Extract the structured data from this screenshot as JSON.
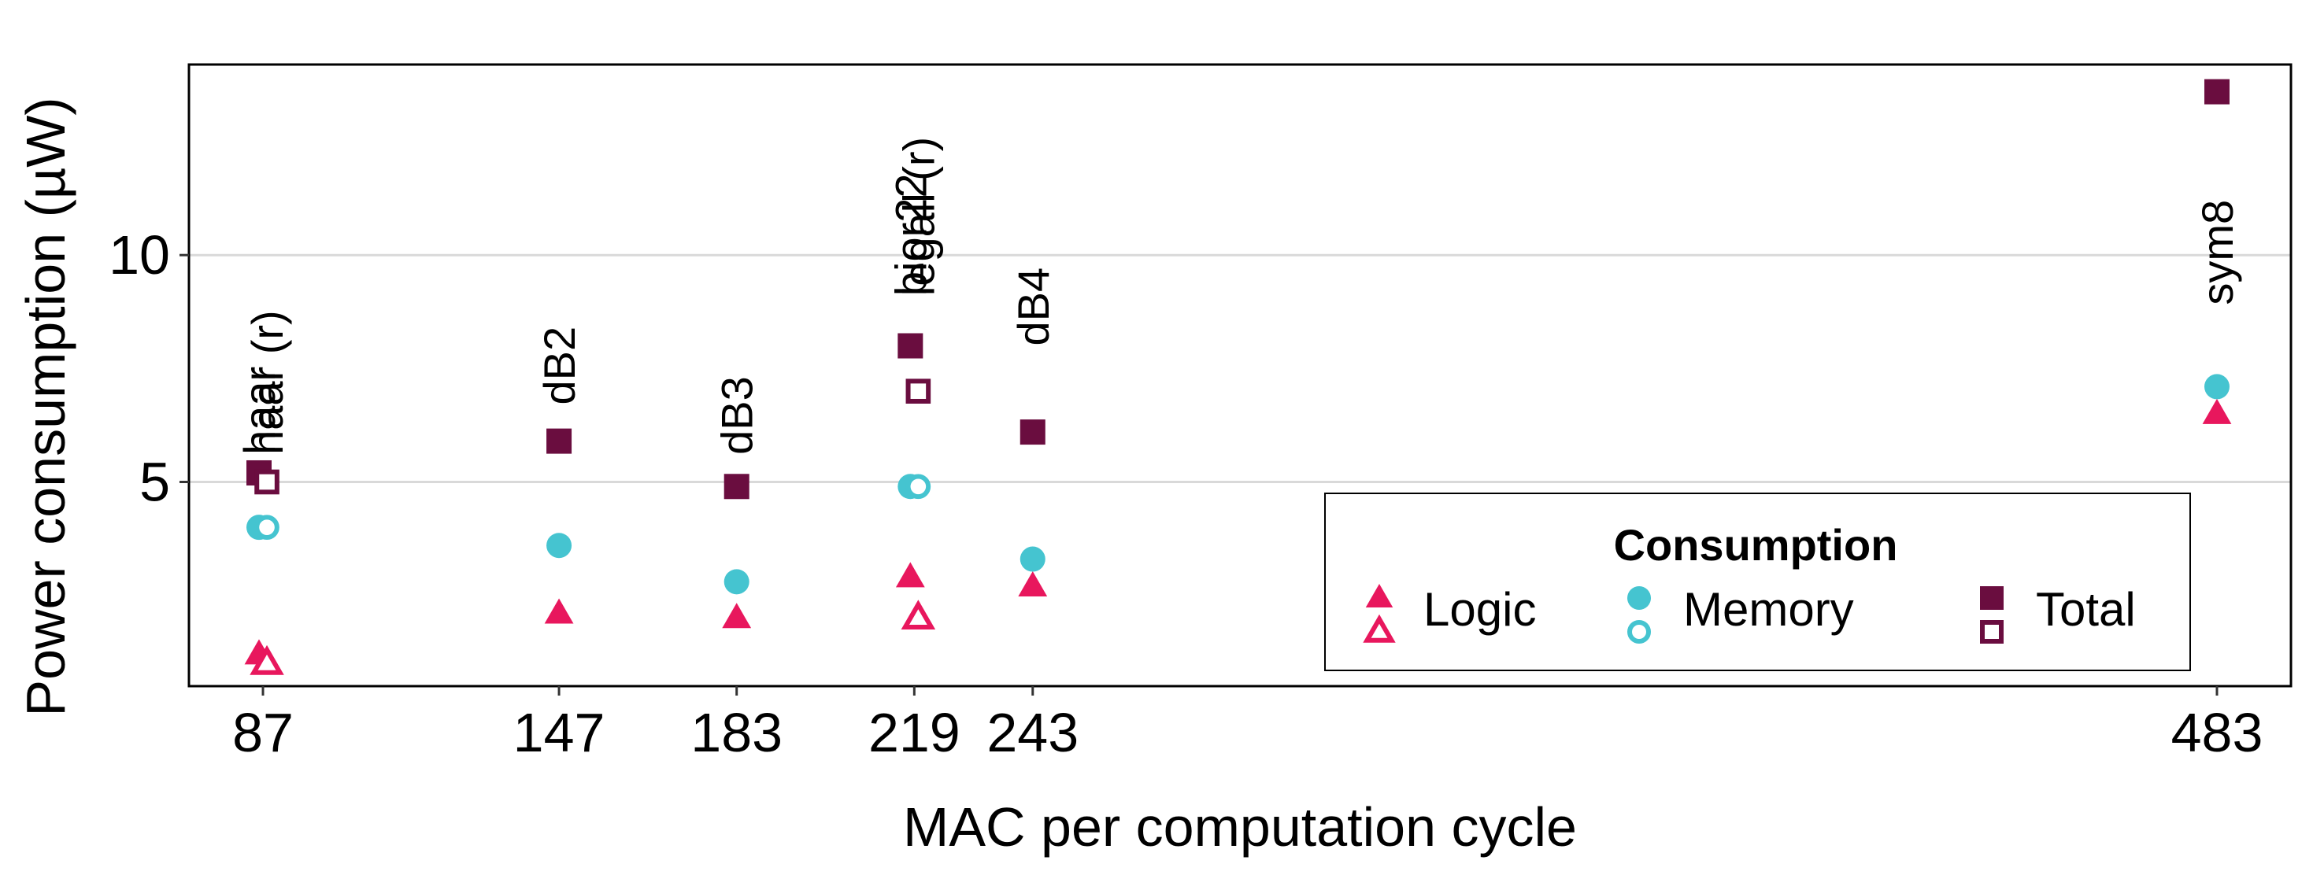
{
  "chart_data": {
    "type": "scatter",
    "title": "",
    "xlabel": "MAC per computation cycle",
    "ylabel": "Power consumption (µW)",
    "xlim": [
      72,
      498
    ],
    "ylim": [
      0.5,
      14.2
    ],
    "y_ticks": [
      5,
      10
    ],
    "y_tick_labels": [
      "5",
      "10"
    ],
    "x_ticks": [
      87,
      147,
      183,
      219,
      243,
      483
    ],
    "x_tick_labels": [
      "87",
      "147",
      "183",
      "219",
      "243",
      "483"
    ],
    "grid": "horizontal major",
    "colors": {
      "logic": "#E8175D",
      "memory": "#45C4D0",
      "total": "#6A0D3F"
    },
    "legend": {
      "title": "Consumption",
      "placement": "bottom-right",
      "entries": [
        "Logic",
        "Memory",
        "Total"
      ]
    },
    "series": [
      {
        "name": "Logic",
        "marker": "triangle",
        "points": [
          {
            "x": 86.2,
            "y": 1.2,
            "hollow": false
          },
          {
            "x": 87.8,
            "y": 1.0,
            "hollow": true
          },
          {
            "x": 147,
            "y": 2.1,
            "hollow": false
          },
          {
            "x": 183,
            "y": 2.0,
            "hollow": false
          },
          {
            "x": 218.2,
            "y": 2.9,
            "hollow": false
          },
          {
            "x": 219.8,
            "y": 2.0,
            "hollow": true
          },
          {
            "x": 243,
            "y": 2.7,
            "hollow": false
          },
          {
            "x": 483,
            "y": 6.5,
            "hollow": false
          }
        ]
      },
      {
        "name": "Memory",
        "marker": "circle",
        "points": [
          {
            "x": 86.2,
            "y": 4.0,
            "hollow": false
          },
          {
            "x": 87.8,
            "y": 4.0,
            "hollow": true
          },
          {
            "x": 147,
            "y": 3.6,
            "hollow": false
          },
          {
            "x": 183,
            "y": 2.8,
            "hollow": false
          },
          {
            "x": 218.2,
            "y": 4.9,
            "hollow": false
          },
          {
            "x": 219.8,
            "y": 4.9,
            "hollow": true
          },
          {
            "x": 243,
            "y": 3.3,
            "hollow": false
          },
          {
            "x": 483,
            "y": 7.1,
            "hollow": false
          }
        ]
      },
      {
        "name": "Total",
        "marker": "square",
        "points": [
          {
            "x": 86.2,
            "y": 5.2,
            "hollow": false
          },
          {
            "x": 87.8,
            "y": 5.0,
            "hollow": true
          },
          {
            "x": 147,
            "y": 5.9,
            "hollow": false
          },
          {
            "x": 183,
            "y": 4.9,
            "hollow": false
          },
          {
            "x": 218.2,
            "y": 8.0,
            "hollow": false
          },
          {
            "x": 219.8,
            "y": 7.0,
            "hollow": true
          },
          {
            "x": 243,
            "y": 6.1,
            "hollow": false
          },
          {
            "x": 483,
            "y": 13.6,
            "hollow": false
          }
        ]
      }
    ],
    "annotations": [
      {
        "text": "haar",
        "x": 86.2,
        "y": 5.6
      },
      {
        "text": "haar (r)",
        "x": 87.8,
        "y": 5.6
      },
      {
        "text": "dB2",
        "x": 147,
        "y": 6.7
      },
      {
        "text": "dB3",
        "x": 183,
        "y": 5.6
      },
      {
        "text": "bior22",
        "x": 218.2,
        "y": 9.1
      },
      {
        "text": "legall (r)",
        "x": 219.8,
        "y": 9.1
      },
      {
        "text": "dB4",
        "x": 243,
        "y": 8.0
      },
      {
        "text": "sym8",
        "x": 483,
        "y": 8.9
      }
    ]
  }
}
